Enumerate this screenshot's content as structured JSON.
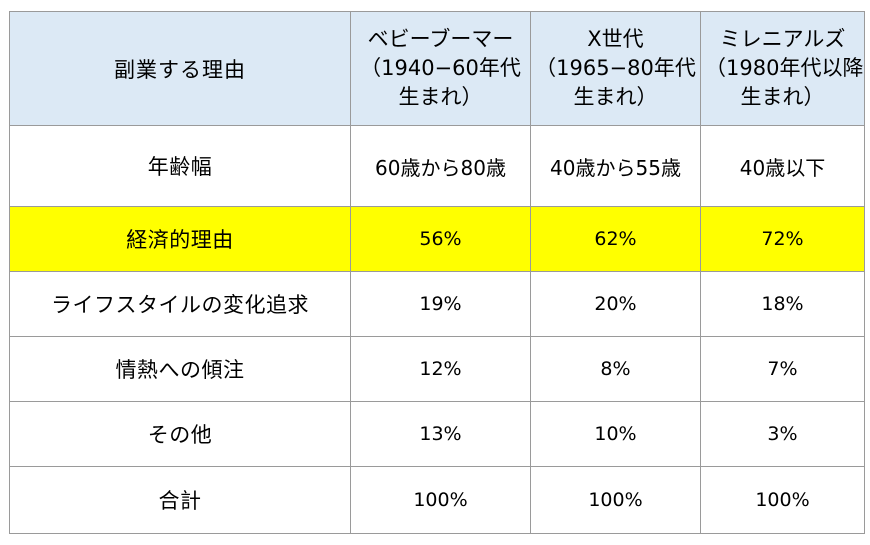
{
  "header": {
    "reason_label": "副業する理由",
    "columns": [
      {
        "line1": "ベビーブーマー",
        "line2": "（1940−60年代",
        "line3": "生まれ）"
      },
      {
        "line1": "X世代",
        "line2": "（1965−80年代",
        "line3": "生まれ）"
      },
      {
        "line1": "ミレニアルズ",
        "line2": "（1980年代以降",
        "line3": "生まれ）"
      }
    ]
  },
  "rows": [
    {
      "label": "年齢幅",
      "values": [
        "60歳から80歳",
        "40歳から55歳",
        "40歳以下"
      ]
    },
    {
      "label": "経済的理由",
      "values": [
        "56%",
        "62%",
        "72%"
      ]
    },
    {
      "label": "ライフスタイルの変化追求",
      "values": [
        "19%",
        "20%",
        "18%"
      ]
    },
    {
      "label": "情熱への傾注",
      "values": [
        "12%",
        "8%",
        "7%"
      ]
    },
    {
      "label": "その他",
      "values": [
        "13%",
        "10%",
        "3%"
      ]
    },
    {
      "label": "合計",
      "values": [
        "100%",
        "100%",
        "100%"
      ]
    }
  ],
  "colors": {
    "header_bg": "#dce9f5",
    "highlight_bg": "#ffff00",
    "border": "#9a9a9a"
  }
}
